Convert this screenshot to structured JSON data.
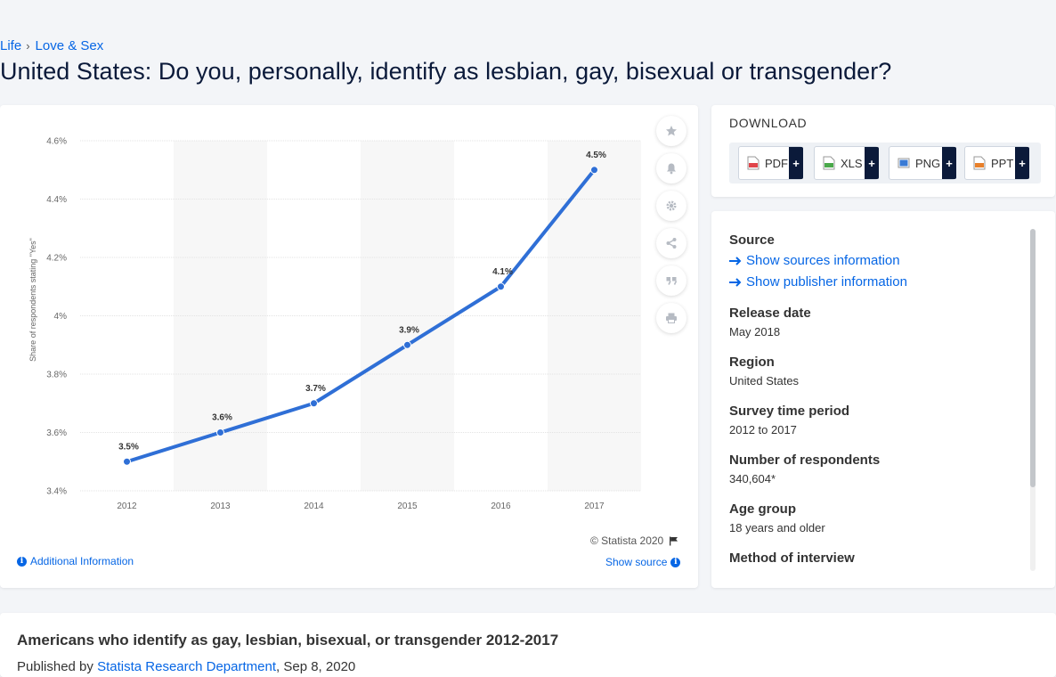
{
  "breadcrumb": {
    "items": [
      "Life",
      "Love & Sex"
    ]
  },
  "page_title": "United States: Do you, personally, identify as lesbian, gay, bisexual or transgender?",
  "chart": {
    "copyright": "© Statista 2020",
    "additional_info": "Additional Information",
    "show_source": "Show source"
  },
  "chart_data": {
    "type": "line",
    "categories": [
      "2012",
      "2013",
      "2014",
      "2015",
      "2016",
      "2017"
    ],
    "series": [
      {
        "values": [
          3.5,
          3.6,
          3.7,
          3.9,
          4.1,
          4.5
        ]
      }
    ],
    "data_labels": [
      "3.5%",
      "3.6%",
      "3.7%",
      "3.9%",
      "4.1%",
      "4.5%"
    ],
    "ylabel": "Share of respondents stating \"Yes\"",
    "ylim": [
      3.4,
      4.6
    ],
    "yticks": [
      3.4,
      3.6,
      3.8,
      4.0,
      4.2,
      4.4,
      4.6
    ],
    "ytick_labels": [
      "3.4%",
      "3.6%",
      "3.8%",
      "4%",
      "4.2%",
      "4.4%",
      "4.6%"
    ],
    "grid": true,
    "line_color": "#2f6fd6"
  },
  "download": {
    "title": "DOWNLOAD",
    "buttons": [
      {
        "label": "PDF",
        "color": "#e0454a"
      },
      {
        "label": "XLS",
        "color": "#4aa84a"
      },
      {
        "label": "PNG",
        "color": "#3a7bd5"
      },
      {
        "label": "PPT",
        "color": "#e8802a"
      }
    ]
  },
  "details": {
    "source_label": "Source",
    "show_sources": "Show sources information",
    "show_publisher": "Show publisher information",
    "fields": [
      {
        "label": "Release date",
        "value": "May 2018"
      },
      {
        "label": "Region",
        "value": "United States"
      },
      {
        "label": "Survey time period",
        "value": "2012 to 2017"
      },
      {
        "label": "Number of respondents",
        "value": "340,604*"
      },
      {
        "label": "Age group",
        "value": "18 years and older"
      },
      {
        "label": "Method of interview",
        "value": ""
      }
    ]
  },
  "bottom": {
    "title": "Americans who identify as gay, lesbian, bisexual, or transgender 2012-2017",
    "published_by": "Published by",
    "publisher": "Statista Research Department",
    "date": ", Sep 8, 2020"
  }
}
